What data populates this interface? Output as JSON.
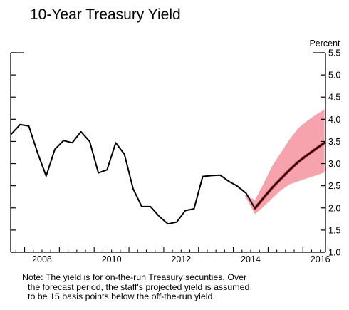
{
  "chart_data": {
    "type": "line",
    "title": "10-Year Treasury Yield",
    "ylabel": "Percent",
    "ylim": [
      1.0,
      5.5
    ],
    "xlim": [
      2007.6,
      2016.65
    ],
    "y_ticks": [
      "1.0",
      "1.5",
      "2.0",
      "2.5",
      "3.0",
      "3.5",
      "4.0",
      "4.5",
      "5.0",
      "5.5"
    ],
    "x_ticks": [
      "2008",
      "2010",
      "2012",
      "2014",
      "2016"
    ],
    "colors": {
      "line": "#000000",
      "band": "#f7a3ae",
      "projection": "#c0141e"
    },
    "series": [
      {
        "x": [
          2007.62,
          2007.87,
          2008.12,
          2008.37,
          2008.62,
          2008.87,
          2009.12,
          2009.37,
          2009.62,
          2009.87,
          2010.12,
          2010.37,
          2010.62,
          2010.87,
          2011.12,
          2011.37,
          2011.62,
          2011.87,
          2012.12,
          2012.37,
          2012.62,
          2012.87,
          2013.12,
          2013.37,
          2013.62,
          2013.87,
          2014.12,
          2014.37,
          2014.62
        ],
        "values": [
          3.67,
          3.88,
          3.85,
          3.25,
          2.72,
          3.32,
          3.52,
          3.47,
          3.72,
          3.5,
          2.79,
          2.86,
          3.47,
          3.21,
          2.43,
          2.03,
          2.03,
          1.81,
          1.64,
          1.68,
          1.94,
          1.98,
          2.71,
          2.73,
          2.74,
          2.6,
          2.49,
          2.33,
          1.99
        ]
      },
      {
        "x": [
          2014.62,
          2014.87,
          2015.12,
          2015.37,
          2015.62,
          2015.87,
          2016.12,
          2016.37,
          2016.62
        ],
        "values": [
          1.99,
          2.23,
          2.46,
          2.66,
          2.86,
          3.04,
          3.19,
          3.33,
          3.47
        ]
      }
    ],
    "band": {
      "x": [
        2014.32,
        2014.62,
        2014.87,
        2015.12,
        2015.37,
        2015.62,
        2015.87,
        2016.12,
        2016.37,
        2016.62
      ],
      "upper": [
        2.3,
        2.18,
        2.55,
        2.95,
        3.25,
        3.55,
        3.8,
        3.96,
        4.1,
        4.22
      ],
      "lower": [
        2.3,
        1.86,
        2.03,
        2.22,
        2.4,
        2.53,
        2.6,
        2.67,
        2.73,
        2.8
      ]
    }
  },
  "note": {
    "line1": "Note:  The yield is for on-the-run Treasury securities. Over",
    "line2": "the forecast period, the staff's projected yield is assumed",
    "line3": "to be 15 basis points below the off-the-run yield."
  }
}
